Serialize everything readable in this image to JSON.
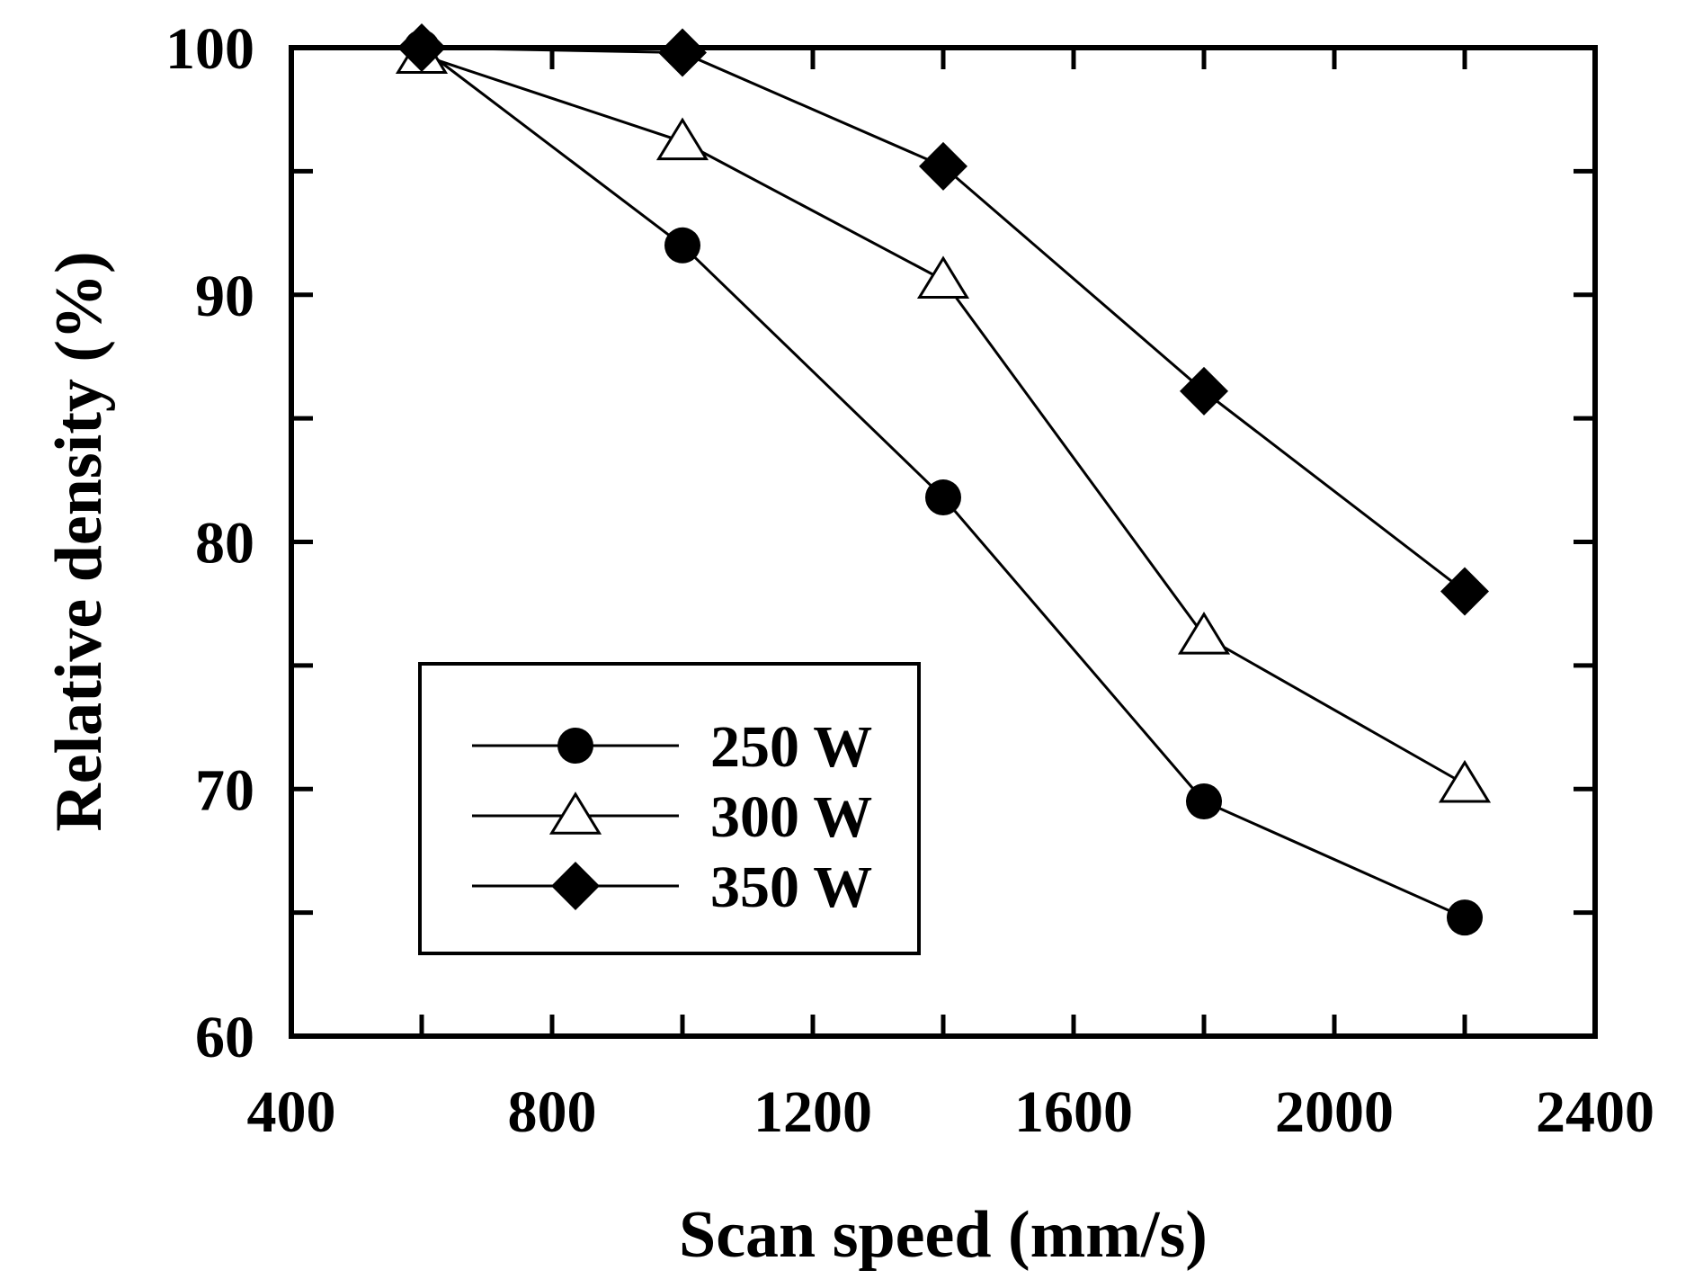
{
  "chart_data": {
    "type": "line",
    "title": "",
    "xlabel": "Scan speed (mm/s)",
    "ylabel": "Relative density (%)",
    "xlim": [
      400,
      2400
    ],
    "ylim": [
      60,
      100
    ],
    "x_ticks": [
      400,
      800,
      1200,
      1600,
      2000,
      2400
    ],
    "x_ticks_minor": [
      600,
      1000,
      1400,
      1800,
      2200
    ],
    "y_ticks": [
      60,
      70,
      80,
      90,
      100
    ],
    "y_ticks_minor": [
      65,
      75,
      85,
      95
    ],
    "grid": false,
    "legend_position": "bottom-left",
    "series": [
      {
        "name": "250 W",
        "marker": "filled-circle",
        "x": [
          600,
          1000,
          1400,
          1800,
          2200
        ],
        "y": [
          100,
          92,
          81.8,
          69.5,
          64.8
        ]
      },
      {
        "name": "300 W",
        "marker": "open-triangle",
        "x": [
          600,
          1000,
          1400,
          1800,
          2200
        ],
        "y": [
          99.7,
          96.2,
          90.6,
          76.2,
          70.2
        ]
      },
      {
        "name": "350 W",
        "marker": "filled-diamond",
        "x": [
          600,
          1000,
          1400,
          1800,
          2200
        ],
        "y": [
          100,
          99.8,
          95.2,
          86.1,
          78
        ]
      }
    ]
  }
}
